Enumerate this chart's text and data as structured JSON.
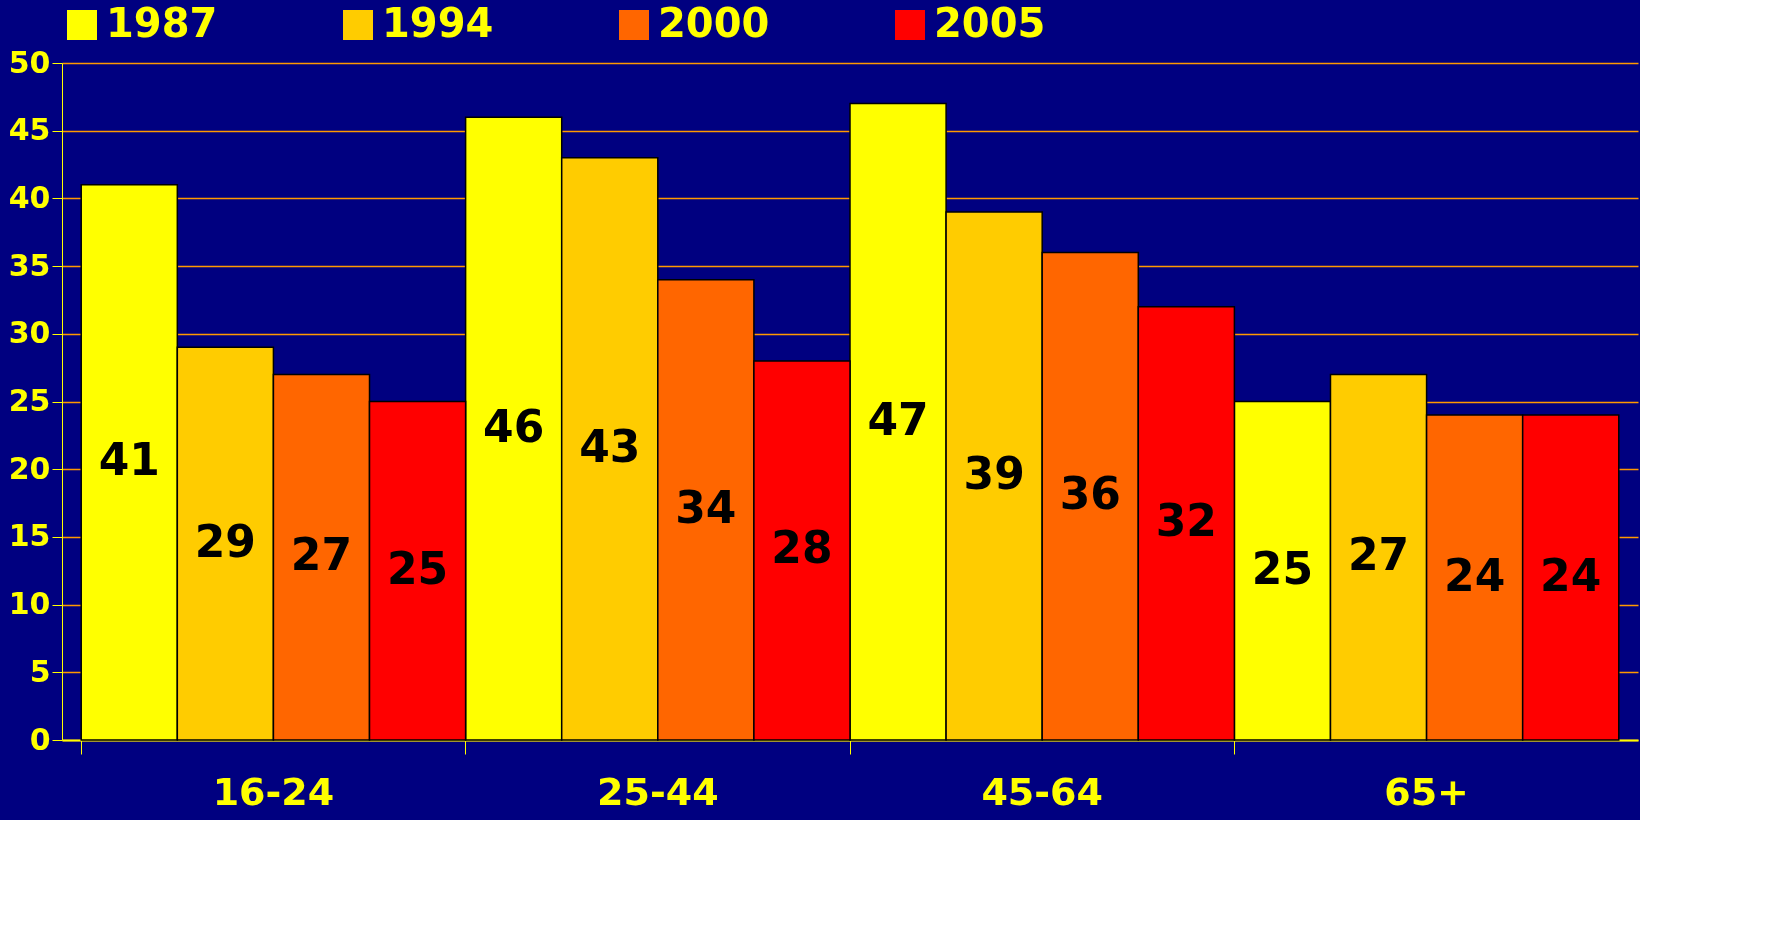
{
  "chart_data": {
    "type": "bar",
    "categories": [
      "16-24",
      "25-44",
      "45-64",
      "65+"
    ],
    "series": [
      {
        "name": "1987",
        "color": "#ffff00",
        "values": [
          41,
          46,
          47,
          25
        ]
      },
      {
        "name": "1994",
        "color": "#ffcc00",
        "values": [
          29,
          43,
          39,
          27
        ]
      },
      {
        "name": "2000",
        "color": "#ff6600",
        "values": [
          27,
          34,
          36,
          24
        ]
      },
      {
        "name": "2005",
        "color": "#ff0000",
        "values": [
          25,
          28,
          32,
          24
        ]
      }
    ],
    "ylim": [
      0,
      50
    ],
    "yticks": [
      0,
      5,
      10,
      15,
      20,
      25,
      30,
      35,
      40,
      45,
      50
    ],
    "grid": "y",
    "legend": "top",
    "data_labels": true
  }
}
